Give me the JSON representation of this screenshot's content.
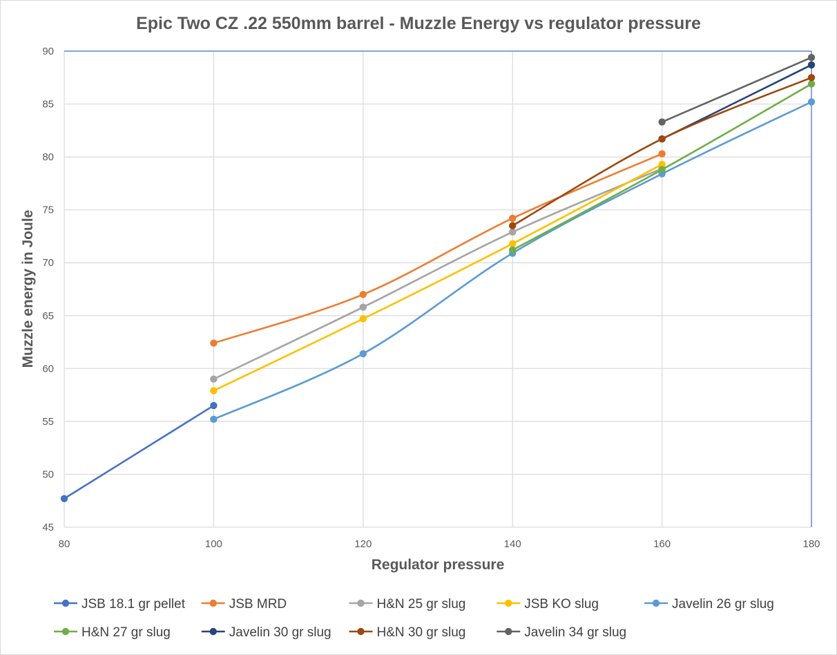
{
  "chart_data": {
    "type": "line",
    "title": "Epic Two CZ .22 550mm barrel - Muzzle Energy vs regulator pressure",
    "xlabel": "Regulator pressure",
    "ylabel": "Muzzle energy in Joule",
    "x": [
      80,
      100,
      120,
      140,
      160,
      180
    ],
    "xticks": [
      80,
      100,
      120,
      140,
      160,
      180
    ],
    "yticks": [
      45,
      50,
      55,
      60,
      65,
      70,
      75,
      80,
      85,
      90
    ],
    "xlim": [
      80,
      180
    ],
    "ylim": [
      45,
      90
    ],
    "grid": true,
    "smooth": true,
    "legend": "bottom",
    "series": [
      {
        "name": "JSB 18.1 gr pellet",
        "color": "#4472C4",
        "values": [
          47.7,
          56.5,
          null,
          null,
          null,
          null
        ]
      },
      {
        "name": "JSB MRD",
        "color": "#ED7D31",
        "values": [
          null,
          62.4,
          67.0,
          74.2,
          80.3,
          null
        ]
      },
      {
        "name": "H&N 25 gr slug",
        "color": "#A5A5A5",
        "values": [
          null,
          59.0,
          65.8,
          72.9,
          78.9,
          null
        ]
      },
      {
        "name": "JSB KO slug",
        "color": "#FFC000",
        "values": [
          null,
          57.9,
          64.7,
          71.8,
          79.3,
          null
        ]
      },
      {
        "name": "Javelin 26 gr slug",
        "color": "#5B9BD5",
        "values": [
          null,
          55.2,
          61.4,
          70.9,
          78.4,
          85.2
        ]
      },
      {
        "name": "H&N 27 gr slug",
        "color": "#70AD47",
        "values": [
          null,
          null,
          null,
          71.2,
          78.8,
          86.9
        ]
      },
      {
        "name": "Javelin 30 gr slug",
        "color": "#264478",
        "values": [
          null,
          null,
          null,
          null,
          81.7,
          88.7
        ]
      },
      {
        "name": "H&N 30 gr slug",
        "color": "#9E480E",
        "values": [
          null,
          null,
          null,
          73.5,
          81.7,
          87.5
        ]
      },
      {
        "name": "Javelin 34 gr slug",
        "color": "#636363",
        "values": [
          null,
          null,
          null,
          null,
          83.3,
          89.4
        ]
      }
    ]
  }
}
